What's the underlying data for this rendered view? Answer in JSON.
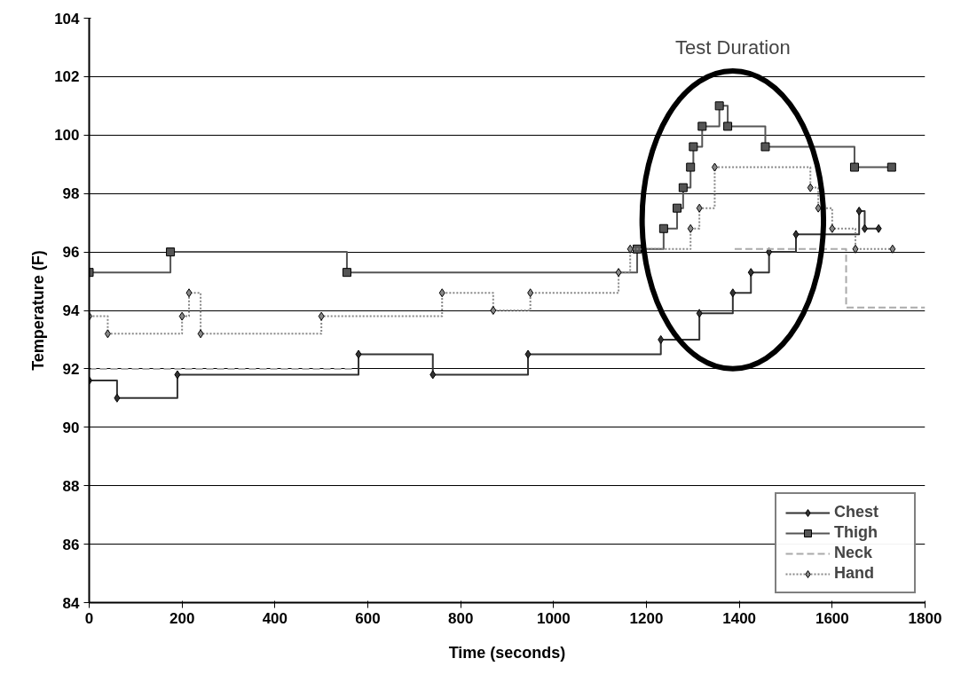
{
  "chart_data": {
    "type": "step",
    "xlabel": "Time (seconds)",
    "ylabel": "Temperature (F)",
    "xlim": [
      0,
      1800
    ],
    "xticks": [
      0,
      200,
      400,
      600,
      800,
      1000,
      1200,
      1400,
      1600,
      1800
    ],
    "ylim": [
      84,
      104
    ],
    "yticks": [
      84,
      86,
      88,
      90,
      92,
      94,
      96,
      98,
      100,
      102,
      104
    ],
    "grid": "y",
    "legend": "bottom right",
    "annotations": [
      "Test Duration"
    ],
    "series": [
      {
        "name": "Chest",
        "color": "#333333",
        "marker": "diamond",
        "line_style": "solid",
        "x": [
          0,
          60,
          190,
          580,
          740,
          945,
          1231,
          1314,
          1386,
          1425,
          1464,
          1522,
          1658,
          1670,
          1700
        ],
        "values": [
          91.6,
          91.0,
          91.8,
          92.5,
          91.8,
          92.5,
          93.0,
          93.9,
          94.6,
          95.3,
          96.0,
          96.6,
          97.4,
          96.8,
          96.8
        ]
      },
      {
        "name": "Thigh",
        "color": "#555555",
        "marker": "square",
        "line_style": "solid",
        "x": [
          0,
          175,
          555,
          1180,
          1237,
          1266,
          1279,
          1295,
          1301,
          1320,
          1357,
          1375,
          1456,
          1648,
          1728
        ],
        "values": [
          95.3,
          96.0,
          95.3,
          96.1,
          96.8,
          97.5,
          98.2,
          98.9,
          99.6,
          100.3,
          101.0,
          100.3,
          99.6,
          98.9,
          98.9
        ]
      },
      {
        "name": "Neck",
        "color": "#aaaaaa",
        "marker": "none",
        "line_style": "dashed",
        "x": [
          0,
          570,
          580,
          1390,
          1630,
          1800
        ],
        "values": [
          92.0,
          92.0,
          null,
          96.1,
          94.1,
          94.1
        ]
      },
      {
        "name": "Hand",
        "color": "#888888",
        "marker": "diamond",
        "line_style": "dotted",
        "x": [
          0,
          40,
          200,
          215,
          240,
          500,
          760,
          870,
          950,
          1140,
          1165,
          1295,
          1314,
          1347,
          1553,
          1570,
          1600,
          1650,
          1730
        ],
        "values": [
          93.8,
          93.2,
          93.8,
          94.6,
          93.2,
          93.8,
          94.6,
          94.0,
          94.6,
          95.3,
          96.1,
          96.8,
          97.5,
          98.9,
          98.2,
          97.5,
          96.8,
          96.1,
          96.1
        ]
      }
    ]
  }
}
